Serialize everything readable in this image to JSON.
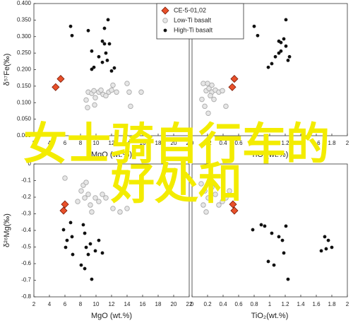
{
  "chart_data": [
    {
      "type": "scatter",
      "xlabel": "MgO (wt.%)",
      "ylabel": "δ⁵⁷Fe(‰)",
      "xlim": [
        2,
        22
      ],
      "xticks": [
        2,
        4,
        6,
        8,
        10,
        12,
        14,
        16,
        18,
        20,
        22
      ],
      "ylim": [
        0,
        0.4
      ],
      "yticks": [
        {
          "value": 0,
          "label": "0.000"
        },
        {
          "value": 0.05,
          "label": "0.050"
        },
        {
          "value": 0.1,
          "label": "0.100"
        },
        {
          "value": 0.15,
          "label": "0.150"
        },
        {
          "value": 0.2,
          "label": "0.200"
        },
        {
          "value": 0.25,
          "label": "0.250"
        },
        {
          "value": 0.3,
          "label": "0.300"
        },
        {
          "value": 0.35,
          "label": "0.350"
        },
        {
          "value": 0.4,
          "label": "0.400"
        }
      ],
      "series": [
        {
          "name": "CE-5-01,02",
          "color": "#e8502a",
          "marker": "diamond",
          "x": [
            5.45,
            4.8
          ],
          "y": [
            0.172,
            0.147
          ]
        },
        {
          "name": "Low-Ti basalt",
          "color": "#aaaaaa",
          "marker": "open-circle",
          "x": [
            8.73,
            9.0,
            9.45,
            9.73,
            9.91,
            10.36,
            10.64,
            10.91,
            11.27,
            11.64,
            12.0,
            12.18,
            12.64,
            14.0,
            14.27,
            14.45,
            15.82,
            8.91,
            9.82
          ],
          "y": [
            0.108,
            0.132,
            0.128,
            0.136,
            0.115,
            0.132,
            0.138,
            0.125,
            0.121,
            0.132,
            0.138,
            0.153,
            0.132,
            0.158,
            0.132,
            0.089,
            0.132,
            0.085,
            0.093
          ]
        },
        {
          "name": "High-Ti basalt",
          "color": "#111111",
          "marker": "dot",
          "x": [
            6.73,
            6.91,
            9.0,
            9.45,
            9.73,
            10.36,
            10.82,
            11.09,
            11.27,
            11.45,
            11.55,
            11.73,
            9.45,
            12.0,
            12.36,
            10.82,
            11.09
          ],
          "y": [
            0.331,
            0.303,
            0.318,
            0.256,
            0.207,
            0.239,
            0.286,
            0.278,
            0.25,
            0.228,
            0.351,
            0.278,
            0.201,
            0.196,
            0.205,
            0.222,
            0.325
          ]
        }
      ]
    },
    {
      "type": "scatter",
      "xlabel": "TiO₂(wt.%)",
      "legend": "upper-left",
      "xlim": [
        0,
        2
      ],
      "xticks": [
        0,
        0.2,
        0.4,
        0.6,
        0.8,
        1,
        1.2,
        1.4,
        1.6,
        1.8,
        2
      ],
      "ylim": [
        0,
        0.4
      ],
      "series": [
        {
          "name": "CE-5-01,02",
          "color": "#e8502a",
          "marker": "diamond",
          "x": [
            0.545,
            0.518
          ],
          "y": [
            0.172,
            0.147
          ]
        },
        {
          "name": "Low-Ti basalt",
          "color": "#aaaaaa",
          "marker": "open-circle",
          "x": [
            0.145,
            0.182,
            0.218,
            0.255,
            0.282,
            0.127,
            0.164,
            0.209,
            0.236,
            0.3,
            0.345,
            0.391,
            0.255,
            0.2,
            0.436
          ],
          "y": [
            0.158,
            0.136,
            0.143,
            0.132,
            0.11,
            0.11,
            0.089,
            0.068,
            0.121,
            0.138,
            0.132,
            0.136,
            0.153,
            0.158,
            0.089
          ]
        },
        {
          "name": "High-Ti basalt",
          "color": "#111111",
          "marker": "dot",
          "x": [
            0.8,
            0.845,
            0.982,
            1.027,
            1.073,
            1.118,
            1.145,
            1.182,
            1.209,
            1.209,
            1.236,
            1.255,
            1.118,
            1.145
          ],
          "y": [
            0.331,
            0.303,
            0.207,
            0.218,
            0.239,
            0.25,
            0.282,
            0.293,
            0.351,
            0.271,
            0.228,
            0.239,
            0.286,
            0.256
          ]
        }
      ]
    },
    {
      "type": "scatter",
      "xlabel": "MgO (wt.%)",
      "ylabel": "δ²⁶Mg(‰)",
      "xlim": [
        2,
        22
      ],
      "xticks": [
        2,
        4,
        6,
        8,
        10,
        12,
        14,
        16,
        18,
        20,
        22
      ],
      "ylim": [
        -0.8,
        0
      ],
      "yticks": [
        0,
        -0.1,
        -0.2,
        -0.3,
        -0.4,
        -0.5,
        -0.6,
        -0.7,
        -0.8
      ],
      "series": [
        {
          "name": "CE-5-01,02",
          "color": "#e8502a",
          "marker": "diamond",
          "x": [
            6.0,
            5.82
          ],
          "y": [
            -0.243,
            -0.281
          ]
        },
        {
          "name": "Low-Ti basalt",
          "color": "#aaaaaa",
          "marker": "open-circle",
          "x": [
            6.0,
            8.09,
            8.55,
            9.0,
            9.27,
            9.45,
            9.91,
            10.36,
            10.82,
            11.27,
            12.18,
            13.09,
            14.0,
            8.36,
            8.73,
            7.64
          ],
          "y": [
            -0.085,
            -0.162,
            -0.204,
            -0.183,
            -0.247,
            -0.289,
            -0.204,
            -0.226,
            -0.183,
            -0.204,
            -0.268,
            -0.289,
            -0.268,
            -0.128,
            -0.111,
            -0.226
          ]
        },
        {
          "name": "High-Ti basalt",
          "color": "#111111",
          "marker": "dot",
          "x": [
            5.82,
            6.27,
            6.09,
            6.73,
            6.91,
            7.0,
            8.36,
            8.09,
            8.55,
            8.73,
            9.0,
            9.27,
            9.45,
            9.91,
            10.36,
            10.82,
            8.55
          ],
          "y": [
            -0.396,
            -0.46,
            -0.502,
            -0.353,
            -0.438,
            -0.545,
            -0.366,
            -0.609,
            -0.417,
            -0.502,
            -0.545,
            -0.481,
            -0.694,
            -0.523,
            -0.46,
            -0.536,
            -0.63
          ]
        }
      ]
    },
    {
      "type": "scatter",
      "xlabel": "TiO₂(wt.%)",
      "xlim": [
        0,
        2
      ],
      "xticks": [
        0,
        0.2,
        0.4,
        0.6,
        0.8,
        1,
        1.2,
        1.4,
        1.6,
        1.8,
        2
      ],
      "ylim": [
        -0.8,
        0
      ],
      "series": [
        {
          "name": "CE-5-01,02",
          "color": "#e8502a",
          "marker": "diamond",
          "x": [
            0.545,
            0.527
          ],
          "y": [
            -0.281,
            -0.243
          ]
        },
        {
          "name": "Low-Ti basalt",
          "color": "#aaaaaa",
          "marker": "open-circle",
          "x": [
            0.118,
            0.164,
            0.209,
            0.255,
            0.3,
            0.345,
            0.391,
            0.436,
            0.236,
            0.145,
            0.182,
            0.482
          ],
          "y": [
            -0.119,
            -0.162,
            -0.204,
            -0.14,
            -0.183,
            -0.247,
            -0.226,
            -0.204,
            -0.077,
            -0.247,
            -0.289,
            -0.162
          ]
        },
        {
          "name": "High-Ti basalt",
          "color": "#111111",
          "marker": "dot",
          "x": [
            0.782,
            0.891,
            0.936,
            1.027,
            0.982,
            1.055,
            1.118,
            1.164,
            1.209,
            1.182,
            1.236,
            1.664,
            1.709,
            1.755,
            1.8,
            1.727
          ],
          "y": [
            -0.396,
            -0.366,
            -0.374,
            -0.417,
            -0.587,
            -0.609,
            -0.438,
            -0.46,
            -0.374,
            -0.536,
            -0.694,
            -0.523,
            -0.438,
            -0.46,
            -0.502,
            -0.511
          ]
        }
      ]
    }
  ],
  "overlay": {
    "line1": "女士骑自行车的",
    "line2": "好处和"
  }
}
